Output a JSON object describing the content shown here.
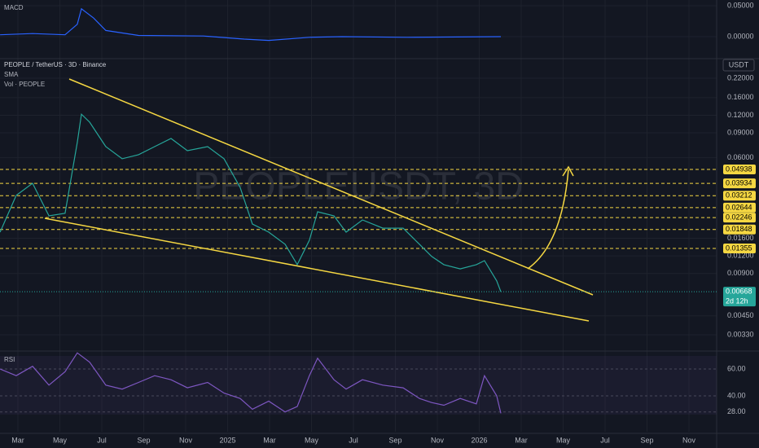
{
  "header": {
    "symbol": "PEOPLE / TetherUS · 3D · Binance",
    "indicator": "SMA",
    "volume": "Vol · PEOPLE",
    "watermark": "PEOPLEUSDT, 3D",
    "currency": "USDT"
  },
  "chart_data": [
    {
      "type": "line",
      "title": "MACD",
      "color": "#2962ff",
      "x": [
        1.15,
        2.7,
        4.25,
        4.83,
        5.03,
        5.61,
        6.19,
        7.75,
        10.85,
        12.79,
        13.96,
        15.9,
        17.46,
        20.56,
        25.03
      ],
      "values": [
        0.003,
        0.005,
        0.003,
        0.02,
        0.045,
        0.03,
        0.01,
        0.002,
        0.001,
        -0.004,
        -0.006,
        -0.001,
        0,
        -0.001,
        0
      ],
      "xlim": [
        1.146,
        35.32
      ],
      "ylim": [
        -0.0329,
        0.0592
      ],
      "yticks": [
        {
          "value": 0.05,
          "label": "0.05000"
        },
        {
          "value": 0,
          "label": "0.00000"
        }
      ]
    },
    {
      "type": "line",
      "color": "#26a69a",
      "log_scale": true,
      "grid": true,
      "x": [
        1.15,
        1.92,
        2.7,
        3.48,
        4.25,
        4.83,
        5.03,
        5.42,
        6.19,
        6.97,
        7.75,
        8.52,
        9.3,
        10.08,
        11.05,
        11.83,
        12.6,
        13.18,
        13.96,
        14.74,
        15.32,
        15.9,
        16.29,
        17.07,
        17.65,
        18.43,
        19.4,
        20.37,
        21.15,
        21.73,
        22.31,
        23.09,
        23.86,
        24.25,
        24.83,
        25.03
      ],
      "values": [
        0.0177,
        0.0323,
        0.0394,
        0.0231,
        0.0241,
        0.0768,
        0.122,
        0.107,
        0.0718,
        0.0588,
        0.0629,
        0.0718,
        0.082,
        0.0671,
        0.0718,
        0.0588,
        0.0368,
        0.0202,
        0.0177,
        0.0145,
        0.0104,
        0.0155,
        0.0247,
        0.0231,
        0.0177,
        0.0216,
        0.0189,
        0.0189,
        0.0145,
        0.0119,
        0.0104,
        0.0097,
        0.0104,
        0.0111,
        0.00797,
        0.00668
      ],
      "xlim": [
        1.146,
        35.32
      ],
      "ylim": [
        0.00256,
        0.291
      ],
      "yticks": [
        {
          "value": 0.22,
          "label": "0.22000"
        },
        {
          "value": 0.16,
          "label": "0.16000"
        },
        {
          "value": 0.12,
          "label": "0.12000"
        },
        {
          "value": 0.09,
          "label": "0.09000"
        },
        {
          "value": 0.06,
          "label": "0.06000"
        },
        {
          "value": 0.016,
          "label": "0.01600"
        },
        {
          "value": 0.012,
          "label": "0.01200"
        },
        {
          "value": 0.009,
          "label": "0.00900"
        },
        {
          "value": 0.0045,
          "label": "0.00450"
        },
        {
          "value": 0.0033,
          "label": "0.00330"
        }
      ],
      "levels": [
        {
          "value": 0.04938,
          "label": "0.04938"
        },
        {
          "value": 0.03934,
          "label": "0.03934"
        },
        {
          "value": 0.03212,
          "label": "0.03212"
        },
        {
          "value": 0.02644,
          "label": "0.02644"
        },
        {
          "value": 0.02246,
          "label": "0.02246"
        },
        {
          "value": 0.01848,
          "label": "0.01848"
        },
        {
          "value": 0.01355,
          "label": "0.01355"
        }
      ],
      "level_color": "#f5d742",
      "last": {
        "value": 0.00668,
        "label": "0.00668",
        "countdown": "2d 12h"
      }
    },
    {
      "type": "line",
      "title": "RSI",
      "color": "#7e57c2",
      "x": [
        1.15,
        1.92,
        2.7,
        3.48,
        4.25,
        4.83,
        5.42,
        6.19,
        6.97,
        7.75,
        8.52,
        9.3,
        10.08,
        11.05,
        11.83,
        12.6,
        13.18,
        13.96,
        14.74,
        15.32,
        15.9,
        16.29,
        17.07,
        17.65,
        18.43,
        19.4,
        20.37,
        21.15,
        21.73,
        22.31,
        23.09,
        23.86,
        24.25,
        24.83,
        25.03
      ],
      "values": [
        60,
        55,
        62,
        48,
        58,
        72,
        65,
        48,
        45,
        50,
        55,
        52,
        46,
        50,
        42,
        38,
        30,
        36,
        28,
        32,
        55,
        68,
        52,
        45,
        52,
        48,
        46,
        38,
        35,
        33,
        38,
        34,
        55,
        40,
        27
      ],
      "xlim": [
        1.146,
        35.32
      ],
      "ylim": [
        13.3,
        72.7
      ],
      "yticks": [
        {
          "value": 60,
          "label": "60.00"
        },
        {
          "value": 40,
          "label": "40.00"
        },
        {
          "value": 28,
          "label": "28.00"
        }
      ],
      "xticks": [
        {
          "value": 2,
          "label": "Mar"
        },
        {
          "value": 4,
          "label": "May"
        },
        {
          "value": 6,
          "label": "Jul"
        },
        {
          "value": 8,
          "label": "Sep"
        },
        {
          "value": 10,
          "label": "Nov"
        },
        {
          "value": 12,
          "label": "2025"
        },
        {
          "value": 14,
          "label": "Mar"
        },
        {
          "value": 16,
          "label": "May"
        },
        {
          "value": 18,
          "label": "Jul"
        },
        {
          "value": 20,
          "label": "Sep"
        },
        {
          "value": 22,
          "label": "Nov"
        },
        {
          "value": 24,
          "label": "2026"
        },
        {
          "value": 26,
          "label": "Mar"
        },
        {
          "value": 28,
          "label": "May"
        },
        {
          "value": 30,
          "label": "Jul"
        },
        {
          "value": 32,
          "label": "Sep"
        },
        {
          "value": 34,
          "label": "Nov"
        }
      ]
    }
  ]
}
